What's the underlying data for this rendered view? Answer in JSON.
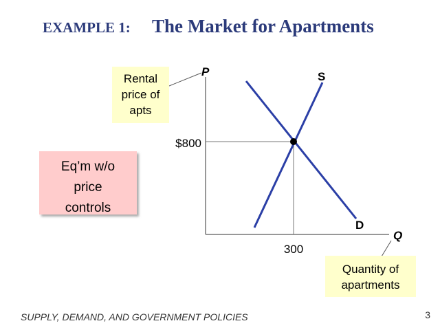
{
  "title": {
    "prefix": "EXAMPLE 1:",
    "main": "The Market for Apartments"
  },
  "axes": {
    "y_label": "P",
    "x_label": "Q"
  },
  "curves": {
    "supply": "S",
    "demand": "D"
  },
  "equilibrium": {
    "price": "$800",
    "quantity": "300"
  },
  "callouts": {
    "y_axis": [
      "Rental",
      "price of",
      "apts"
    ],
    "x_axis": [
      "Quantity of",
      "apartments"
    ]
  },
  "note": [
    "Eq’m w/o",
    "price",
    "controls"
  ],
  "footer": {
    "text": "SUPPLY, DEMAND, AND GOVERNMENT POLICIES",
    "page": "3"
  }
}
